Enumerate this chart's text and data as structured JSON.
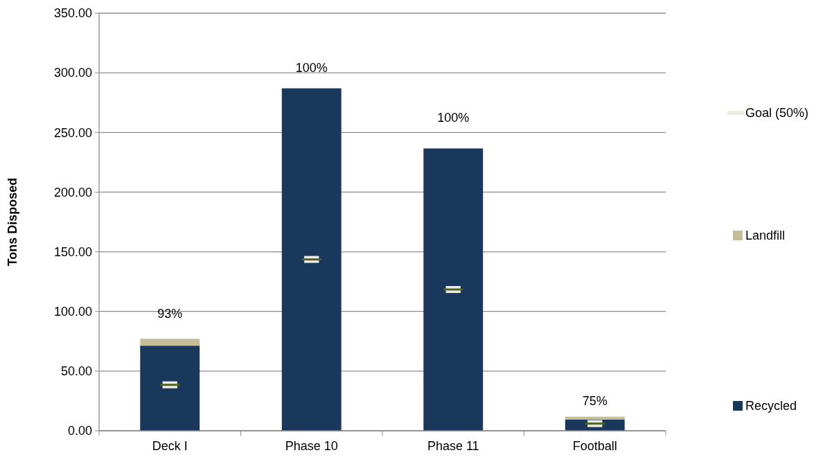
{
  "chart_data": {
    "type": "bar",
    "stacked": true,
    "ylabel": "Tons Disposed",
    "categories": [
      "Deck I",
      "Phase 10",
      "Phase 11",
      "Football"
    ],
    "series": [
      {
        "name": "Recycled",
        "color": "#1a375c",
        "values": [
          71.3,
          287,
          236.6,
          9.3
        ]
      },
      {
        "name": "Landfill",
        "color": "#c4bd97",
        "values": [
          5.8,
          0,
          0,
          2.5
        ]
      },
      {
        "name": "Goal (50%)",
        "type": "scatter",
        "color": "#eeece1",
        "x": [
          "Deck I",
          "Phase 10",
          "Phase 11",
          "Football"
        ],
        "values": [
          38.5,
          143.6,
          118.4,
          6
        ]
      }
    ],
    "annotations": [
      "93%",
      "100%",
      "100%",
      "75%"
    ],
    "ylim": [
      0,
      350
    ],
    "yticks": [
      {
        "value": 0,
        "label": "0.00"
      },
      {
        "value": 50,
        "label": "50.00"
      },
      {
        "value": 100,
        "label": "100.00"
      },
      {
        "value": 150,
        "label": "150.00"
      },
      {
        "value": 200,
        "label": "200.00"
      },
      {
        "value": 250,
        "label": "250.00"
      },
      {
        "value": 300,
        "label": "300.00"
      },
      {
        "value": 350,
        "label": "350.00"
      }
    ],
    "grid": "y",
    "legend": "right"
  }
}
